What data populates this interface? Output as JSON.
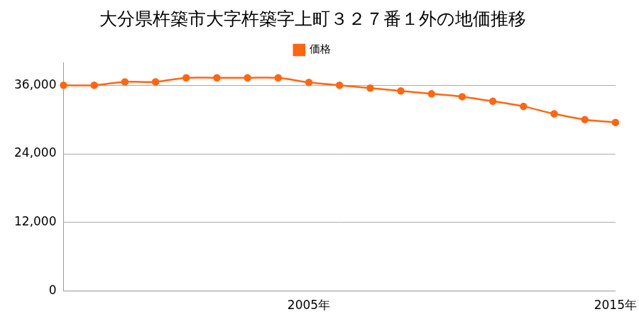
{
  "chart_data": {
    "type": "line",
    "title": "大分県杵築市大字杵築字上町３２７番１外の地価推移",
    "categories": [
      null,
      null,
      null,
      null,
      null,
      null,
      null,
      null,
      "2005年",
      null,
      null,
      null,
      null,
      null,
      null,
      null,
      null,
      null,
      "2015年"
    ],
    "series": [
      {
        "name": "価格",
        "color": "#ff6611",
        "marker": "circle",
        "line_style": "solid",
        "values": [
          36000,
          36000,
          36600,
          36600,
          37300,
          37300,
          37300,
          37300,
          36500,
          36000,
          35500,
          35000,
          34500,
          34000,
          33200,
          32300,
          31000,
          30000,
          29500
        ]
      }
    ],
    "ylim": [
      0,
      40000
    ],
    "yticks": [
      0,
      {
        "value": 12000,
        "label": "12,000"
      },
      {
        "value": 24000,
        "label": "24,000"
      },
      {
        "value": 36000,
        "label": "36,000"
      }
    ],
    "grid": true,
    "legend": "top"
  }
}
